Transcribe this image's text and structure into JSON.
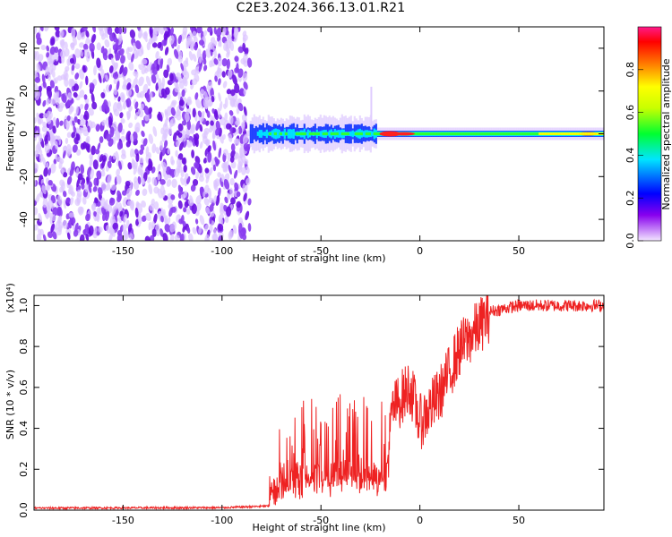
{
  "page": {
    "title": "C2E3.2024.366.13.01.R21"
  },
  "chart_data": [
    {
      "type": "heatmap",
      "xlabel": "Height of straight line (km)",
      "ylabel": "Frequency (Hz)",
      "xlim": [
        -195,
        93
      ],
      "ylim": [
        -50,
        50
      ],
      "x_ticks": [
        -150,
        -100,
        -50,
        0,
        50
      ],
      "y_ticks": [
        -40,
        -20,
        0,
        20,
        40
      ],
      "colorbar": {
        "label": "Normalized spectral amplitude",
        "range": [
          0,
          1
        ],
        "ticks": [
          "0.0",
          "0.2",
          "0.4",
          "0.6",
          "0.8"
        ],
        "colors": [
          "#f0e0ff",
          "#8800ee",
          "#0000ff",
          "#00ffff",
          "#00ff00",
          "#ffff00",
          "#ff8800",
          "#ff0000",
          "#ff0088"
        ]
      },
      "regions": [
        {
          "name": "noise",
          "x_range": [
            -195,
            -86
          ],
          "freq_range": [
            -50,
            50
          ],
          "amplitude": "low",
          "colors": [
            "#dcc4ff",
            "#8a3cf0",
            "#6a10e0"
          ]
        },
        {
          "name": "carrier",
          "x_range": [
            -86,
            93
          ],
          "freq_center": 0,
          "amplitude_peak_x": -15,
          "colors": [
            "#2040ff",
            "#00e0ff",
            "#30ff30",
            "#ffff00",
            "#ff2020"
          ]
        }
      ],
      "grid": false
    },
    {
      "type": "line",
      "xlabel": "Height of straight line (km)",
      "ylabel": "SNR (10 * v/v)",
      "y_multiplier": "(x10⁴)",
      "xlim": [
        -195,
        93
      ],
      "ylim": [
        0,
        1.05
      ],
      "x_ticks": [
        -150,
        -100,
        -50,
        0,
        50
      ],
      "y_ticks": [
        0.0,
        0.2,
        0.4,
        0.6,
        0.8,
        1.0
      ],
      "y_tick_labels": [
        "0.0",
        "0.2",
        "0.4",
        "0.6",
        "0.8",
        "1.0"
      ],
      "series_color": "#ee2222",
      "envelope": [
        {
          "x": -195,
          "y": 0.01
        },
        {
          "x": -100,
          "y": 0.012
        },
        {
          "x": -76,
          "y": 0.02
        },
        {
          "x": -72,
          "y": 0.18
        },
        {
          "x": -60,
          "y": 0.2
        },
        {
          "x": -40,
          "y": 0.24
        },
        {
          "x": -25,
          "y": 0.26
        },
        {
          "x": -17,
          "y": 0.18
        },
        {
          "x": -14,
          "y": 0.5
        },
        {
          "x": -5,
          "y": 0.62
        },
        {
          "x": 0,
          "y": 0.44
        },
        {
          "x": 10,
          "y": 0.58
        },
        {
          "x": 20,
          "y": 0.8
        },
        {
          "x": 35,
          "y": 0.97
        },
        {
          "x": 50,
          "y": 1.0
        },
        {
          "x": 93,
          "y": 1.0
        }
      ],
      "grid": false
    }
  ]
}
